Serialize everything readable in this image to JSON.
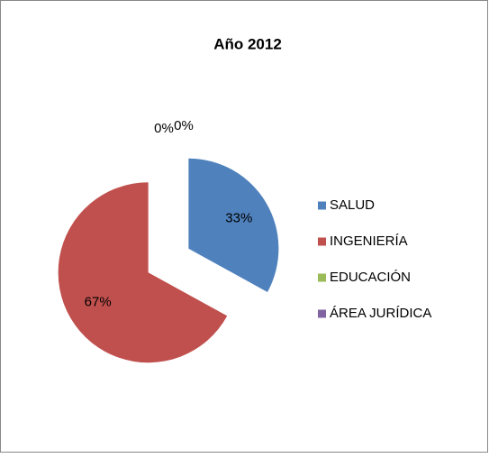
{
  "chart_data": {
    "type": "pie",
    "title": "Año 2012",
    "categories": [
      "SALUD",
      "INGENIERÍA",
      "EDUCACIÓN",
      "ÁREA JURÍDICA"
    ],
    "values": [
      33,
      67,
      0,
      0
    ],
    "value_labels": [
      "33%",
      "67%",
      "0%",
      "0%"
    ],
    "colors": [
      "#4f81bd",
      "#c0504d",
      "#9bbb59",
      "#8064a2"
    ],
    "legend": "right"
  }
}
